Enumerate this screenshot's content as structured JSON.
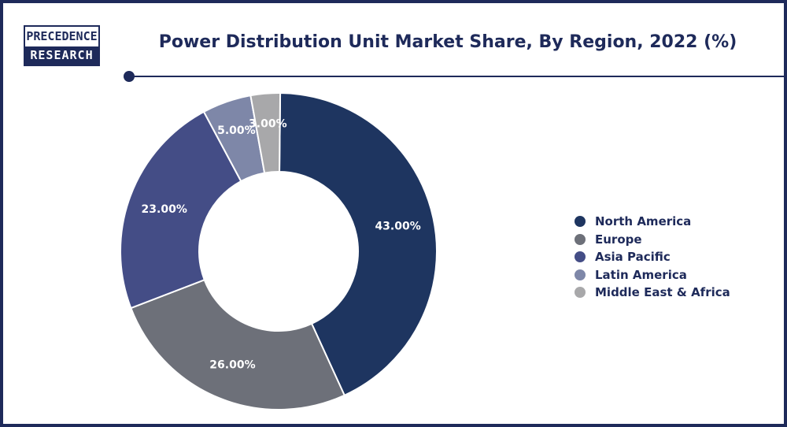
{
  "logo": {
    "line1": "PRECEDENCE",
    "line2": "RESEARCH"
  },
  "title": "Power Distribution Unit Market Share, By Region, 2022 (%)",
  "chart_data": {
    "type": "pie",
    "donut": true,
    "title": "Power Distribution Unit Market Share, By Region, 2022 (%)",
    "categories": [
      "North America",
      "Europe",
      "Asia Pacific",
      "Latin America",
      "Middle East & Africa"
    ],
    "values": [
      43,
      26,
      23,
      5,
      3
    ],
    "value_labels": [
      "43.00%",
      "26.00%",
      "23.00%",
      "5.00%",
      "3.00%"
    ],
    "colors": [
      "#1e3560",
      "#6d7079",
      "#444d86",
      "#7e87a8",
      "#a8a8aa"
    ],
    "legend_position": "right"
  }
}
